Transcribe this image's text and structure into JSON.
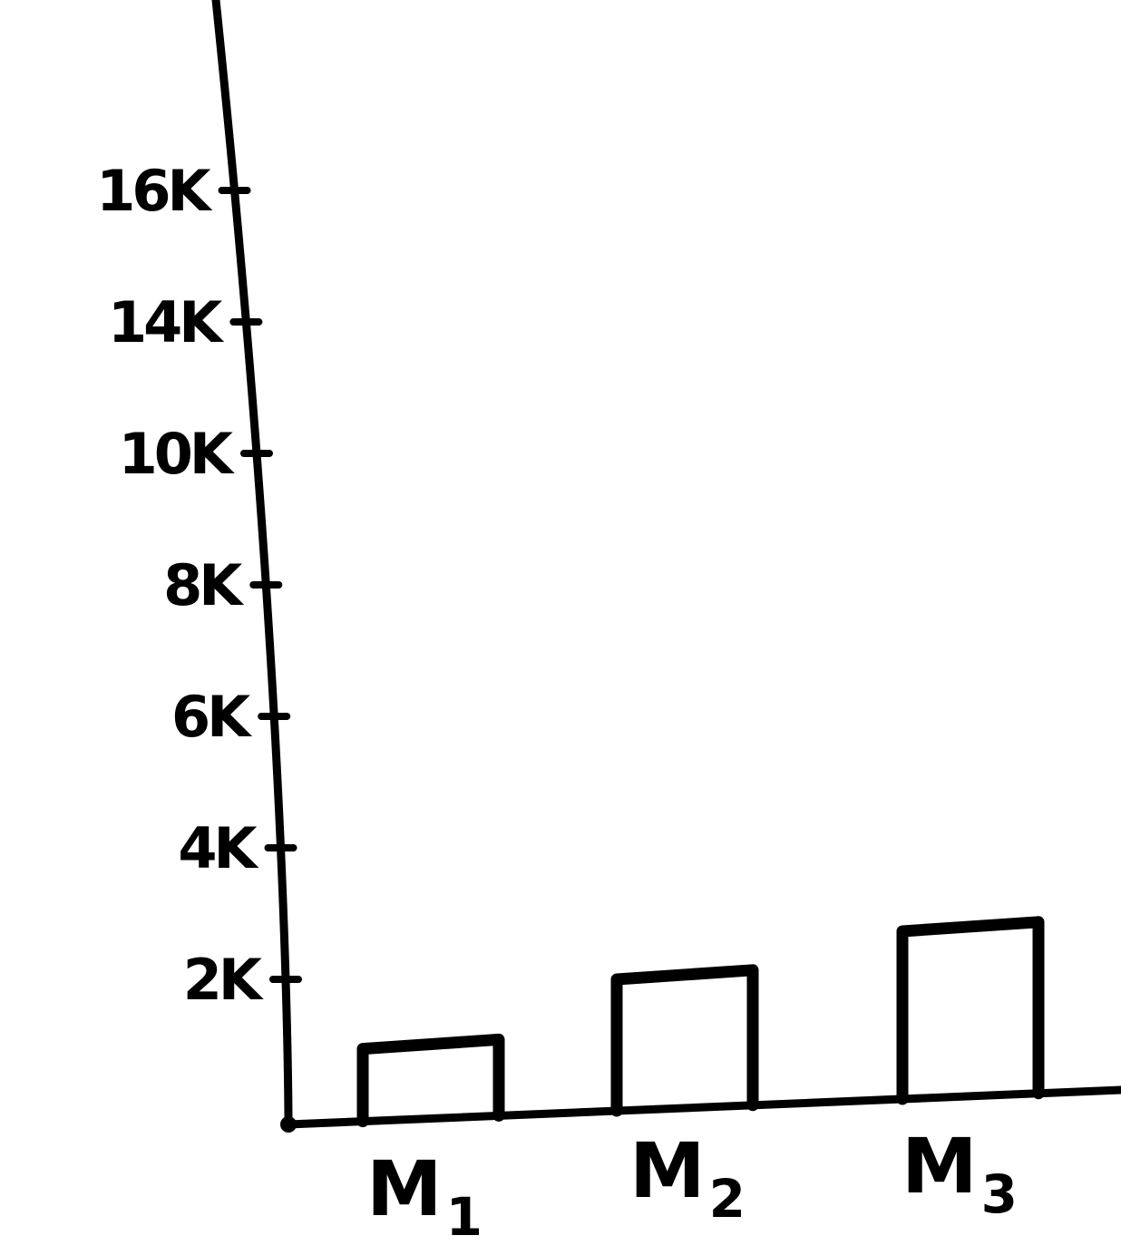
{
  "chart_data": {
    "type": "bar",
    "title": "",
    "xlabel": "",
    "ylabel": "",
    "categories": [
      "M1",
      "M2",
      "M3"
    ],
    "category_labels": [
      {
        "main": "M",
        "sub": "1"
      },
      {
        "main": "M",
        "sub": "2"
      },
      {
        "main": "M",
        "sub": "3"
      }
    ],
    "values": [
      500,
      1000,
      1400
    ],
    "ylim": [
      0,
      16000
    ],
    "y_ticks": [
      2000,
      4000,
      6000,
      8000,
      10000,
      14000,
      16000
    ],
    "y_tick_labels": [
      "2K",
      "4K",
      "6K",
      "8K",
      "10K",
      "14K",
      "16K"
    ],
    "bar_fill": "none",
    "grid": false,
    "legend": "none",
    "colors": {
      "ink": "#000000",
      "background": "#ffffff"
    }
  }
}
